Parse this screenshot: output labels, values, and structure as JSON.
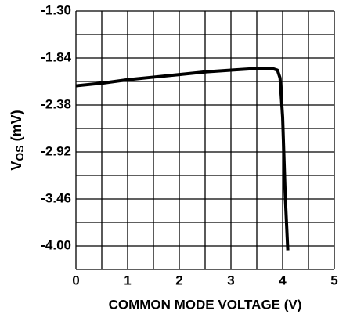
{
  "chart_data": {
    "type": "line",
    "xlabel": "COMMON MODE VOLTAGE (V)",
    "ylabel": {
      "main": "V",
      "sub": "OS",
      "unit": "(mV)"
    },
    "xlim": [
      0,
      5
    ],
    "xticks": [
      0,
      1,
      2,
      3,
      4,
      5
    ],
    "xgrid": [
      0,
      0.5,
      1,
      1.5,
      2,
      2.5,
      3,
      3.5,
      4,
      4.5,
      5
    ],
    "ylim": [
      -4.27,
      -1.3
    ],
    "yticks": [
      {
        "value": -1.3,
        "label": "-1.30"
      },
      {
        "value": -1.84,
        "label": "-1.84"
      },
      {
        "value": -2.38,
        "label": "-2.38"
      },
      {
        "value": -2.92,
        "label": "-2.92"
      },
      {
        "value": -3.46,
        "label": "-3.46"
      },
      {
        "value": -4.0,
        "label": "-4.00"
      }
    ],
    "ygrid": [
      -1.3,
      -1.57,
      -1.84,
      -2.11,
      -2.38,
      -2.65,
      -2.92,
      -3.19,
      -3.46,
      -3.73,
      -4.0,
      -4.27
    ],
    "grid": true,
    "series": [
      {
        "color": "#000000",
        "x": [
          0,
          0.5,
          1,
          1.5,
          2,
          2.5,
          3,
          3.5,
          3.8,
          3.9,
          3.95,
          4.0,
          4.05,
          4.1
        ],
        "values": [
          -2.16,
          -2.13,
          -2.09,
          -2.06,
          -2.03,
          -2.0,
          -1.98,
          -1.96,
          -1.96,
          -1.98,
          -2.07,
          -2.52,
          -3.42,
          -4.05
        ]
      }
    ]
  }
}
